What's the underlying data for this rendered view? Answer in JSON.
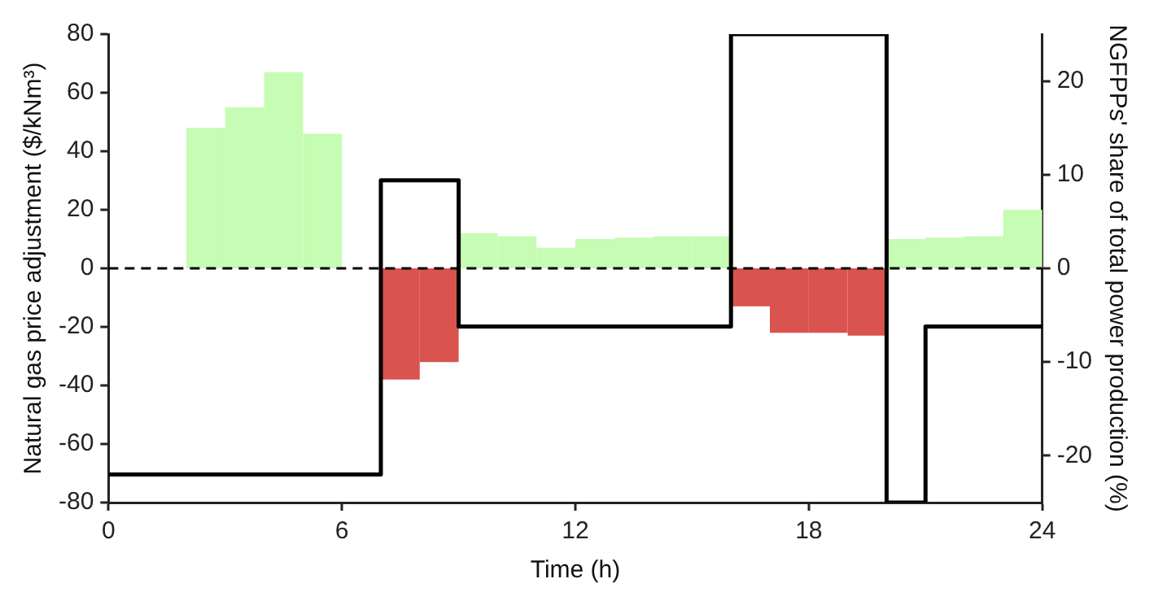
{
  "chart_data": {
    "type": "histogram",
    "xlabel": "Time (h)",
    "ylabel": "Natural gas price adjustment ($/kNm³)",
    "y2label": "NGFPPs' share of total power production (%)",
    "bins": [
      0,
      1,
      2,
      3,
      4,
      5,
      6,
      7,
      8,
      9,
      10,
      11,
      12,
      13,
      14,
      15,
      16,
      17,
      18,
      19,
      20,
      21,
      22,
      23,
      24
    ],
    "series": [
      {
        "values": [
          0,
          0,
          48,
          55,
          67,
          46,
          0,
          -38,
          -32,
          12,
          11,
          7,
          10,
          10.5,
          11,
          11,
          -13,
          -22,
          -22,
          -23,
          10,
          10.5,
          11,
          20
        ],
        "colors": [
          "#c6fcb3",
          "#c6fcb3",
          "#c6fcb3",
          "#c6fcb3",
          "#c6fcb3",
          "#c6fcb3",
          "#c6fcb3",
          "#d9534f",
          "#d9534f",
          "#c6fcb3",
          "#c6fcb3",
          "#c6fcb3",
          "#c6fcb3",
          "#c6fcb3",
          "#c6fcb3",
          "#c6fcb3",
          "#d9534f",
          "#d9534f",
          "#d9534f",
          "#d9534f",
          "#c6fcb3",
          "#c6fcb3",
          "#c6fcb3",
          "#c6fcb3"
        ]
      },
      {
        "type": "line",
        "axis": "y2",
        "color": "#000000",
        "x": [
          0,
          7,
          7,
          9,
          9,
          16,
          16,
          20,
          20,
          21,
          21,
          24
        ],
        "values": [
          -22,
          -22,
          9.4,
          9.4,
          -6.2,
          -6.2,
          25,
          25,
          -25,
          -25,
          -6.2,
          -6.2
        ]
      }
    ],
    "xlim": [
      0,
      24
    ],
    "xticks": [
      0,
      6,
      12,
      18,
      24
    ],
    "ylim": [
      -80,
      80
    ],
    "yticks": [
      -80,
      -60,
      -40,
      -20,
      0,
      20,
      40,
      60,
      80
    ],
    "y2lim": [
      -25,
      25
    ],
    "y2ticks": [
      -20,
      -10,
      0,
      10,
      20
    ],
    "ref_lines": [
      {
        "axis": "y",
        "value": 0,
        "color": "#000000",
        "line_style": "dashed"
      }
    ],
    "grid": false,
    "legend": false
  }
}
